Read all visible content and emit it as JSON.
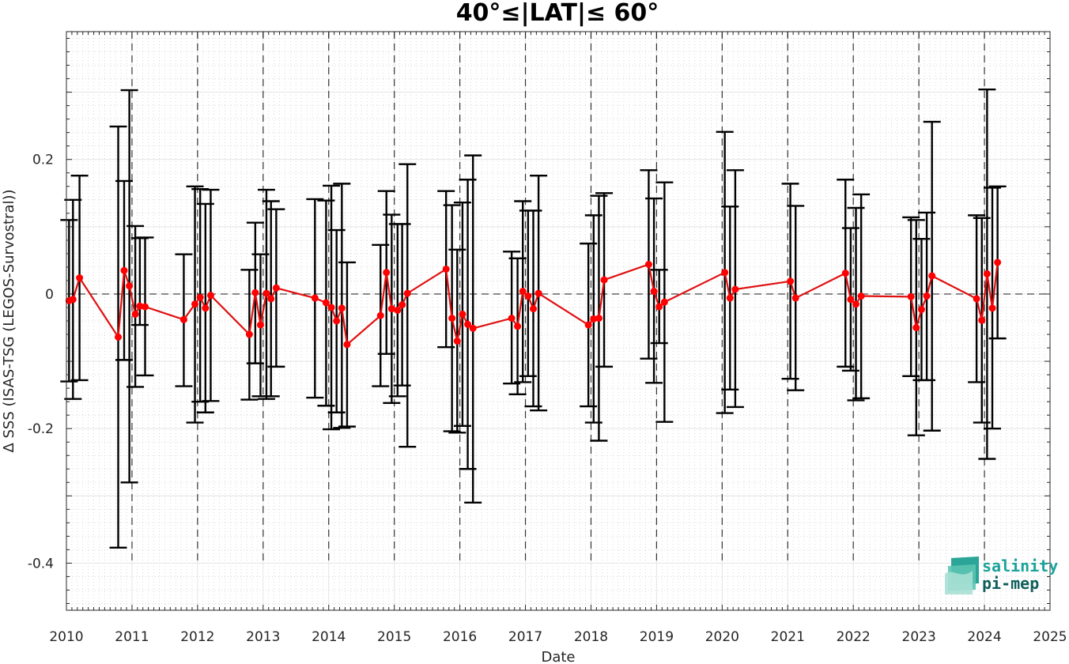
{
  "logo": {
    "line1": "salinity",
    "line2": "pi-mep",
    "color1": "#1aa39a",
    "color2": "#0f5e5a"
  },
  "chart_data": {
    "type": "scatter",
    "title": "40°≤|LAT|≤ 60°",
    "xlabel": "Date",
    "ylabel": "Δ SSS (ISAS-TSG (LEGOS-Survostral))",
    "xlim": [
      2010,
      2025
    ],
    "ylim": [
      -0.47,
      0.39
    ],
    "x_ticks": [
      "2010",
      "2011",
      "2012",
      "2013",
      "2014",
      "2015",
      "2016",
      "2017",
      "2018",
      "2019",
      "2020",
      "2021",
      "2022",
      "2023",
      "2024",
      "2025"
    ],
    "y_ticks": [
      {
        "value": 0.2,
        "label": "0.2"
      },
      {
        "value": 0,
        "label": "0"
      },
      {
        "value": -0.2,
        "label": "-0.2"
      },
      {
        "value": -0.4,
        "label": "-0.4"
      }
    ],
    "grid": "major and minor",
    "year_marker_lines": [
      2011,
      2012,
      2013,
      2014,
      2015,
      2016,
      2017,
      2018,
      2019,
      2020,
      2021,
      2022,
      2023,
      2024
    ],
    "zero_line": 0,
    "series": [
      {
        "color": "#ff0000",
        "line_color": "#e01010",
        "error_bar_color": "#000000",
        "points": [
          {
            "x": 2010.04,
            "y": -0.01,
            "lo": -0.13,
            "hi": 0.11
          },
          {
            "x": 2010.1,
            "y": -0.008,
            "lo": -0.156,
            "hi": 0.14
          },
          {
            "x": 2010.2,
            "y": 0.024,
            "lo": -0.128,
            "hi": 0.176
          },
          {
            "x": 2010.79,
            "y": -0.064,
            "lo": -0.377,
            "hi": 0.249
          },
          {
            "x": 2010.88,
            "y": 0.035,
            "lo": -0.098,
            "hi": 0.168
          },
          {
            "x": 2010.96,
            "y": 0.012,
            "lo": -0.28,
            "hi": 0.303
          },
          {
            "x": 2011.05,
            "y": -0.03,
            "lo": -0.138,
            "hi": 0.101
          },
          {
            "x": 2011.12,
            "y": -0.018,
            "lo": -0.046,
            "hi": 0.083
          },
          {
            "x": 2011.2,
            "y": -0.019,
            "lo": -0.121,
            "hi": 0.084
          },
          {
            "x": 2011.79,
            "y": -0.038,
            "lo": -0.137,
            "hi": 0.059
          },
          {
            "x": 2011.96,
            "y": -0.015,
            "lo": -0.191,
            "hi": 0.16
          },
          {
            "x": 2012.04,
            "y": -0.005,
            "lo": -0.16,
            "hi": 0.156
          },
          {
            "x": 2012.12,
            "y": -0.021,
            "lo": -0.176,
            "hi": 0.134
          },
          {
            "x": 2012.2,
            "y": -0.002,
            "lo": -0.159,
            "hi": 0.155
          },
          {
            "x": 2012.79,
            "y": -0.06,
            "lo": -0.157,
            "hi": 0.036
          },
          {
            "x": 2012.88,
            "y": 0.002,
            "lo": -0.103,
            "hi": 0.106
          },
          {
            "x": 2012.96,
            "y": -0.046,
            "lo": -0.152,
            "hi": 0.059
          },
          {
            "x": 2013.05,
            "y": 0.001,
            "lo": -0.156,
            "hi": 0.155
          },
          {
            "x": 2013.12,
            "y": -0.007,
            "lo": -0.152,
            "hi": 0.138
          },
          {
            "x": 2013.2,
            "y": 0.009,
            "lo": -0.108,
            "hi": 0.126
          },
          {
            "x": 2013.79,
            "y": -0.006,
            "lo": -0.154,
            "hi": 0.141
          },
          {
            "x": 2013.96,
            "y": -0.013,
            "lo": -0.166,
            "hi": 0.139
          },
          {
            "x": 2014.04,
            "y": -0.02,
            "lo": -0.201,
            "hi": 0.161
          },
          {
            "x": 2014.12,
            "y": -0.04,
            "lo": -0.176,
            "hi": 0.095
          },
          {
            "x": 2014.2,
            "y": -0.021,
            "lo": -0.199,
            "hi": 0.164
          },
          {
            "x": 2014.28,
            "y": -0.075,
            "lo": -0.197,
            "hi": 0.047
          },
          {
            "x": 2014.79,
            "y": -0.032,
            "lo": -0.137,
            "hi": 0.073
          },
          {
            "x": 2014.88,
            "y": 0.032,
            "lo": -0.089,
            "hi": 0.153
          },
          {
            "x": 2014.96,
            "y": -0.022,
            "lo": -0.162,
            "hi": 0.118
          },
          {
            "x": 2015.05,
            "y": -0.024,
            "lo": -0.152,
            "hi": 0.104
          },
          {
            "x": 2015.12,
            "y": -0.016,
            "lo": -0.136,
            "hi": 0.104
          },
          {
            "x": 2015.2,
            "y": 0.001,
            "lo": -0.227,
            "hi": 0.193
          },
          {
            "x": 2015.79,
            "y": 0.037,
            "lo": -0.079,
            "hi": 0.153
          },
          {
            "x": 2015.88,
            "y": -0.036,
            "lo": -0.204,
            "hi": 0.132
          },
          {
            "x": 2015.96,
            "y": -0.07,
            "lo": -0.206,
            "hi": 0.066
          },
          {
            "x": 2016.04,
            "y": -0.03,
            "lo": -0.196,
            "hi": 0.136
          },
          {
            "x": 2016.12,
            "y": -0.045,
            "lo": -0.26,
            "hi": 0.17
          },
          {
            "x": 2016.2,
            "y": -0.051,
            "lo": -0.31,
            "hi": 0.206
          },
          {
            "x": 2016.79,
            "y": -0.036,
            "lo": -0.133,
            "hi": 0.063
          },
          {
            "x": 2016.88,
            "y": -0.048,
            "lo": -0.149,
            "hi": 0.053
          },
          {
            "x": 2016.96,
            "y": 0.004,
            "lo": -0.131,
            "hi": 0.138
          },
          {
            "x": 2017.04,
            "y": -0.003,
            "lo": -0.122,
            "hi": 0.124
          },
          {
            "x": 2017.12,
            "y": -0.022,
            "lo": -0.167,
            "hi": 0.124
          },
          {
            "x": 2017.2,
            "y": 0.001,
            "lo": -0.173,
            "hi": 0.176
          },
          {
            "x": 2017.96,
            "y": -0.046,
            "lo": -0.167,
            "hi": 0.075
          },
          {
            "x": 2018.04,
            "y": -0.037,
            "lo": -0.191,
            "hi": 0.117
          },
          {
            "x": 2018.12,
            "y": -0.036,
            "lo": -0.218,
            "hi": 0.146
          },
          {
            "x": 2018.2,
            "y": 0.021,
            "lo": -0.108,
            "hi": 0.15
          },
          {
            "x": 2018.88,
            "y": 0.044,
            "lo": -0.096,
            "hi": 0.184
          },
          {
            "x": 2018.96,
            "y": 0.004,
            "lo": -0.132,
            "hi": 0.142
          },
          {
            "x": 2019.04,
            "y": -0.019,
            "lo": -0.073,
            "hi": 0.036
          },
          {
            "x": 2019.12,
            "y": -0.012,
            "lo": -0.19,
            "hi": 0.166
          },
          {
            "x": 2020.04,
            "y": 0.032,
            "lo": -0.177,
            "hi": 0.241
          },
          {
            "x": 2020.12,
            "y": -0.006,
            "lo": -0.142,
            "hi": 0.13
          },
          {
            "x": 2020.2,
            "y": 0.007,
            "lo": -0.168,
            "hi": 0.184
          },
          {
            "x": 2021.04,
            "y": 0.019,
            "lo": -0.126,
            "hi": 0.164
          },
          {
            "x": 2021.12,
            "y": -0.006,
            "lo": -0.143,
            "hi": 0.131
          },
          {
            "x": 2021.88,
            "y": 0.031,
            "lo": -0.108,
            "hi": 0.17
          },
          {
            "x": 2021.96,
            "y": -0.008,
            "lo": -0.114,
            "hi": 0.098
          },
          {
            "x": 2022.04,
            "y": -0.015,
            "lo": -0.158,
            "hi": 0.128
          },
          {
            "x": 2022.12,
            "y": -0.003,
            "lo": -0.155,
            "hi": 0.148
          },
          {
            "x": 2022.88,
            "y": -0.004,
            "lo": -0.122,
            "hi": 0.114
          },
          {
            "x": 2022.96,
            "y": -0.05,
            "lo": -0.21,
            "hi": 0.11
          },
          {
            "x": 2023.04,
            "y": -0.023,
            "lo": -0.128,
            "hi": 0.082
          },
          {
            "x": 2023.12,
            "y": -0.003,
            "lo": -0.128,
            "hi": 0.121
          },
          {
            "x": 2023.2,
            "y": 0.027,
            "lo": -0.203,
            "hi": 0.256
          },
          {
            "x": 2023.88,
            "y": -0.007,
            "lo": -0.131,
            "hi": 0.117
          },
          {
            "x": 2023.96,
            "y": -0.039,
            "lo": -0.191,
            "hi": 0.113
          },
          {
            "x": 2024.04,
            "y": 0.03,
            "lo": -0.245,
            "hi": 0.304
          },
          {
            "x": 2024.12,
            "y": -0.021,
            "lo": -0.2,
            "hi": 0.158
          },
          {
            "x": 2024.2,
            "y": 0.047,
            "lo": -0.066,
            "hi": 0.16
          }
        ]
      }
    ]
  }
}
